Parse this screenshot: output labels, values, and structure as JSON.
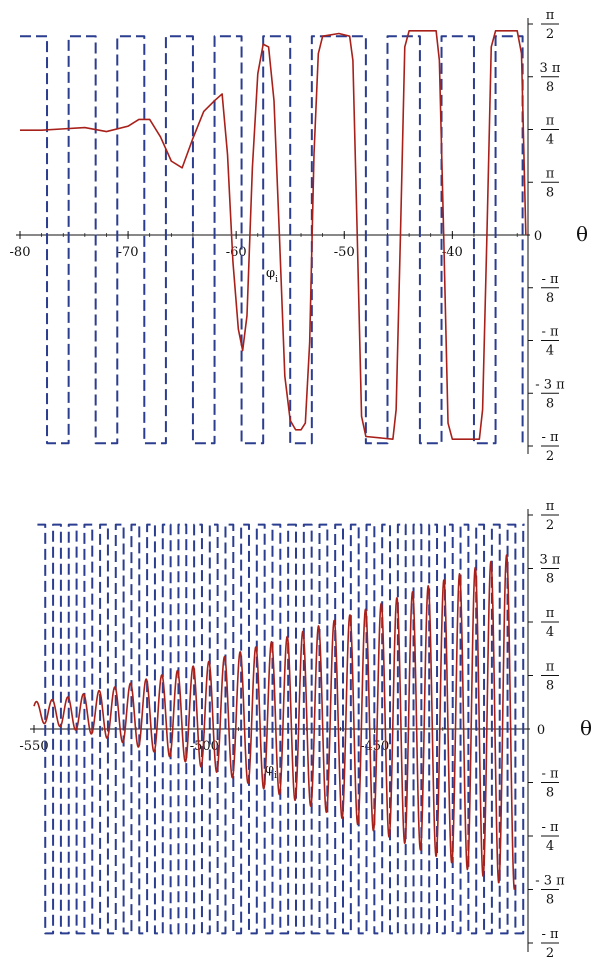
{
  "chart_data": [
    {
      "type": "line",
      "xlabel": "φ_i",
      "ylabel": "θ",
      "xlim": [
        -80,
        -33
      ],
      "ylim": [
        -1.5708,
        1.5708
      ],
      "x_ticks": [
        -80,
        -70,
        -60,
        -50,
        -40
      ],
      "x_tick_labels": [
        "-80",
        "-70",
        "-60",
        "-50",
        "-40"
      ],
      "zero_label": "0",
      "y_ticks": [
        {
          "value": 1.5708,
          "num": "π",
          "den": "2"
        },
        {
          "value": 1.1781,
          "num": "3 π",
          "den": "8"
        },
        {
          "value": 0.7854,
          "num": "π",
          "den": "4"
        },
        {
          "value": 0.3927,
          "num": "π",
          "den": "8"
        },
        {
          "value": -0.3927,
          "num": "- π",
          "den": "8"
        },
        {
          "value": -0.7854,
          "num": "- π",
          "den": "4"
        },
        {
          "value": -1.1781,
          "num": "- 3 π",
          "den": "8"
        },
        {
          "value": -1.5708,
          "num": "- π",
          "den": "2"
        }
      ],
      "series": [
        {
          "style": "dashed",
          "color": "#2b3d8f",
          "points": [
            [
              -80,
              1.48
            ],
            [
              -77.5,
              1.48
            ],
            [
              -77.5,
              -1.55
            ],
            [
              -75.5,
              -1.55
            ],
            [
              -75.5,
              1.48
            ],
            [
              -73,
              1.48
            ],
            [
              -73,
              -1.55
            ],
            [
              -71,
              -1.55
            ],
            [
              -71,
              1.48
            ],
            [
              -68.5,
              1.48
            ],
            [
              -68.5,
              -1.55
            ],
            [
              -66.5,
              -1.55
            ],
            [
              -66.5,
              1.48
            ],
            [
              -64,
              1.48
            ],
            [
              -64,
              -1.55
            ],
            [
              -62,
              -1.55
            ],
            [
              -62,
              1.48
            ],
            [
              -59.5,
              1.48
            ],
            [
              -59.5,
              -1.55
            ],
            [
              -57.5,
              -1.55
            ],
            [
              -57.5,
              1.48
            ],
            [
              -55,
              1.48
            ],
            [
              -55,
              -1.55
            ],
            [
              -53,
              -1.55
            ],
            [
              -53,
              1.48
            ],
            [
              -48,
              1.48
            ],
            [
              -48,
              -1.55
            ],
            [
              -46,
              -1.55
            ],
            [
              -46,
              1.48
            ],
            [
              -43,
              1.48
            ],
            [
              -43,
              -1.55
            ],
            [
              -41,
              -1.55
            ],
            [
              -41,
              1.48
            ],
            [
              -38,
              1.48
            ],
            [
              -38,
              -1.55
            ],
            [
              -36,
              -1.55
            ],
            [
              -36,
              1.48
            ],
            [
              -33.5,
              1.48
            ],
            [
              -33.5,
              -1.55
            ]
          ]
        },
        {
          "style": "solid",
          "color": "#a8201a",
          "points": [
            [
              -80,
              0.78
            ],
            [
              -78,
              0.78
            ],
            [
              -76,
              0.79
            ],
            [
              -74,
              0.8
            ],
            [
              -72,
              0.77
            ],
            [
              -70,
              0.81
            ],
            [
              -69,
              0.86
            ],
            [
              -68,
              0.86
            ],
            [
              -67,
              0.73
            ],
            [
              -66,
              0.55
            ],
            [
              -65,
              0.5
            ],
            [
              -64,
              0.72
            ],
            [
              -63,
              0.92
            ],
            [
              -62,
              1.0
            ],
            [
              -61.3,
              1.05
            ],
            [
              -60.8,
              0.6
            ],
            [
              -60.3,
              -0.2
            ],
            [
              -59.8,
              -0.7
            ],
            [
              -59.4,
              -0.86
            ],
            [
              -59,
              -0.6
            ],
            [
              -58.5,
              0.5
            ],
            [
              -58,
              1.2
            ],
            [
              -57.5,
              1.42
            ],
            [
              -57,
              1.4
            ],
            [
              -56.5,
              1.0
            ],
            [
              -56,
              0.0
            ],
            [
              -55.5,
              -1.05
            ],
            [
              -55,
              -1.38
            ],
            [
              -54.5,
              -1.45
            ],
            [
              -54,
              -1.45
            ],
            [
              -53.6,
              -1.4
            ],
            [
              -53.2,
              -0.8
            ],
            [
              -52.8,
              0.6
            ],
            [
              -52.4,
              1.35
            ],
            [
              -52,
              1.48
            ],
            [
              -50.5,
              1.5
            ],
            [
              -49.5,
              1.48
            ],
            [
              -49.2,
              1.3
            ],
            [
              -48.8,
              0.0
            ],
            [
              -48.4,
              -1.35
            ],
            [
              -48,
              -1.5
            ],
            [
              -45.5,
              -1.52
            ],
            [
              -45.2,
              -1.3
            ],
            [
              -44.8,
              0.0
            ],
            [
              -44.4,
              1.4
            ],
            [
              -44,
              1.52
            ],
            [
              -41.5,
              1.52
            ],
            [
              -41.2,
              1.3
            ],
            [
              -40.8,
              0.0
            ],
            [
              -40.4,
              -1.4
            ],
            [
              -40,
              -1.52
            ],
            [
              -37.5,
              -1.52
            ],
            [
              -37.2,
              -1.3
            ],
            [
              -36.8,
              0.0
            ],
            [
              -36.4,
              1.4
            ],
            [
              -36,
              1.52
            ],
            [
              -34,
              1.52
            ],
            [
              -33.6,
              1.35
            ],
            [
              -33.2,
              0.0
            ]
          ]
        }
      ]
    },
    {
      "type": "line",
      "xlabel": "φ_i",
      "ylabel": "θ",
      "xlim": [
        -550,
        -405
      ],
      "ylim": [
        -1.5708,
        1.5708
      ],
      "x_ticks": [
        -550,
        -500,
        -450
      ],
      "x_tick_labels": [
        "-550",
        "-500",
        "-450"
      ],
      "zero_label": "0",
      "y_ticks": [
        {
          "value": 1.5708,
          "num": "π",
          "den": "2"
        },
        {
          "value": 1.1781,
          "num": "3 π",
          "den": "8"
        },
        {
          "value": 0.7854,
          "num": "π",
          "den": "4"
        },
        {
          "value": 0.3927,
          "num": "π",
          "den": "8"
        },
        {
          "value": -0.3927,
          "num": "- π",
          "den": "8"
        },
        {
          "value": -0.7854,
          "num": "- π",
          "den": "4"
        },
        {
          "value": -1.1781,
          "num": "- 3 π",
          "den": "8"
        },
        {
          "value": -1.5708,
          "num": "- π",
          "den": "2"
        }
      ],
      "series": [
        {
          "style": "dashed",
          "color": "#2b3d8f",
          "pattern": {
            "kind": "square-wave",
            "x_start": -549,
            "x_end": -406,
            "period": 4.6,
            "high": 1.5,
            "low": -1.5
          }
        },
        {
          "style": "solid",
          "color": "#a8201a",
          "pattern": {
            "kind": "oscillation",
            "x_start": -550,
            "x_end": -409,
            "period": 4.6,
            "baseline_start": 0.08,
            "baseline_end": 0.0,
            "peak_start": 0.2,
            "peak_end": 1.3,
            "trough_start": 0.05,
            "trough_end": -1.18,
            "zero_crossing_start": -500
          }
        }
      ]
    }
  ]
}
